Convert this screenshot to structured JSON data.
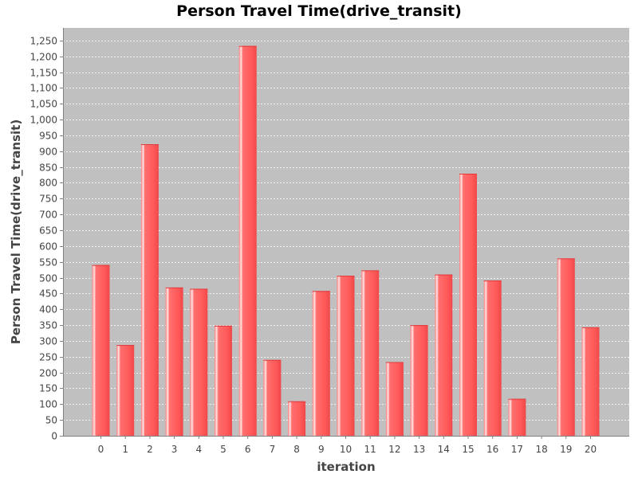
{
  "chart_data": {
    "type": "bar",
    "title": "Person Travel Time(drive_transit)",
    "xlabel": "iteration",
    "ylabel": "Person Travel Time(drive_transit)",
    "categories": [
      "0",
      "1",
      "2",
      "3",
      "4",
      "5",
      "6",
      "7",
      "8",
      "9",
      "10",
      "11",
      "12",
      "13",
      "14",
      "15",
      "16",
      "17",
      "18",
      "19",
      "20"
    ],
    "values": [
      540,
      287,
      922,
      469,
      465,
      348,
      1233,
      240,
      109,
      458,
      506,
      523,
      233,
      350,
      510,
      829,
      491,
      117,
      0,
      561,
      343
    ],
    "ylim": [
      0,
      1290
    ],
    "y_ticks": [
      0,
      50,
      100,
      150,
      200,
      250,
      300,
      350,
      400,
      450,
      500,
      550,
      600,
      650,
      700,
      750,
      800,
      850,
      900,
      950,
      1000,
      1050,
      1100,
      1150,
      1200,
      1250
    ],
    "y_tick_labels": [
      "0",
      "50",
      "100",
      "150",
      "200",
      "250",
      "300",
      "350",
      "400",
      "450",
      "500",
      "550",
      "600",
      "650",
      "700",
      "750",
      "800",
      "850",
      "900",
      "950",
      "1,000",
      "1,050",
      "1,100",
      "1,150",
      "1,200",
      "1,250"
    ],
    "grid": true,
    "colors": {
      "plot_background": "#c0c0c0",
      "bar": "#ff5555",
      "bar_highlight": "#ffd0d0",
      "bar_shadow": "#e03a3a",
      "gridline": "#ffffff",
      "axis": "#808080",
      "text": "#444444",
      "title": "#000000"
    }
  }
}
